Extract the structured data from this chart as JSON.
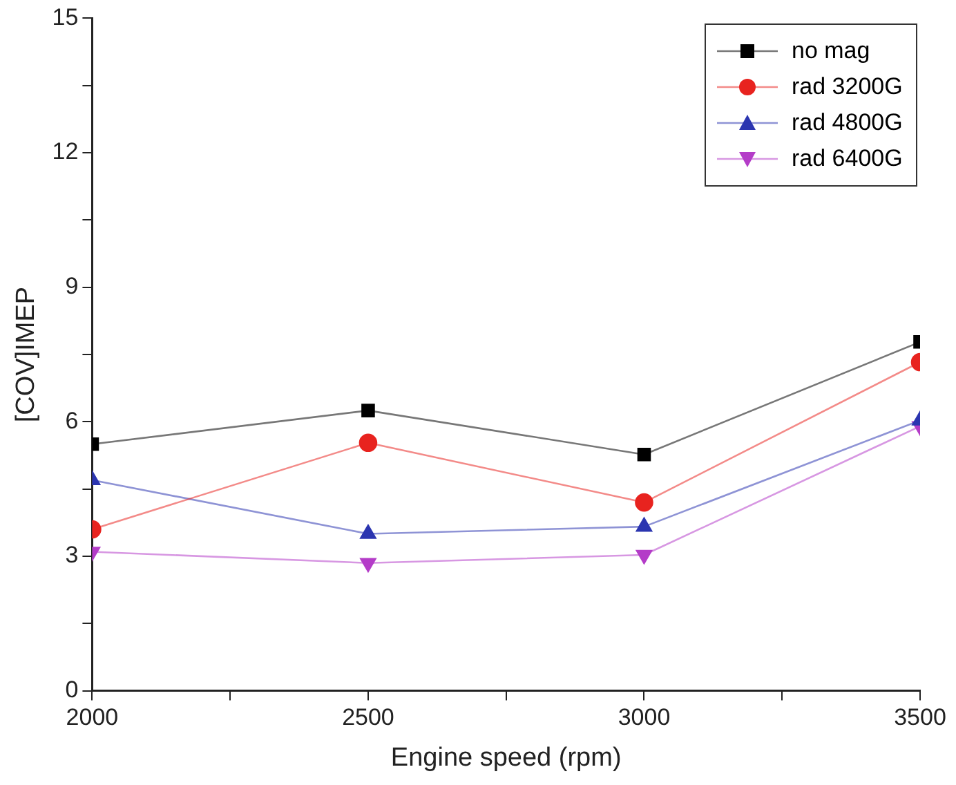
{
  "chart_data": {
    "type": "line",
    "xlabel": "Engine speed (rpm)",
    "ylabel": "[COV]IMEP",
    "x": [
      2000,
      2500,
      3000,
      3500
    ],
    "series": [
      {
        "name": "no mag",
        "color": "#000000",
        "marker": "square",
        "values": [
          5.5,
          6.25,
          5.27,
          7.78
        ]
      },
      {
        "name": "rad 3200G",
        "color": "#e8231f",
        "marker": "circle",
        "values": [
          3.6,
          5.53,
          4.2,
          7.33
        ]
      },
      {
        "name": "rad 4800G",
        "color": "#2b35b0",
        "marker": "triangle",
        "values": [
          4.7,
          3.5,
          3.66,
          6.03
        ]
      },
      {
        "name": "rad 6400G",
        "color": "#b43cc8",
        "marker": "triangle-down",
        "values": [
          3.1,
          2.85,
          3.03,
          5.9
        ]
      }
    ],
    "xlim": [
      2000,
      3500
    ],
    "xticks": [
      2000,
      {
        "value": 2250,
        "label": null
      },
      2500,
      {
        "value": 2750,
        "label": null
      },
      3000,
      {
        "value": 3250,
        "label": null
      },
      3500
    ],
    "ylim": [
      0,
      15
    ],
    "yticks": [
      0,
      {
        "value": 1.5,
        "label": null
      },
      3,
      {
        "value": 4.5,
        "label": null
      },
      6,
      {
        "value": 7.5,
        "label": null
      },
      9,
      {
        "value": 10.5,
        "label": null
      },
      12,
      {
        "value": 13.5,
        "label": null
      },
      15
    ],
    "grid": false,
    "legend": "top right",
    "line_style": "solid"
  }
}
